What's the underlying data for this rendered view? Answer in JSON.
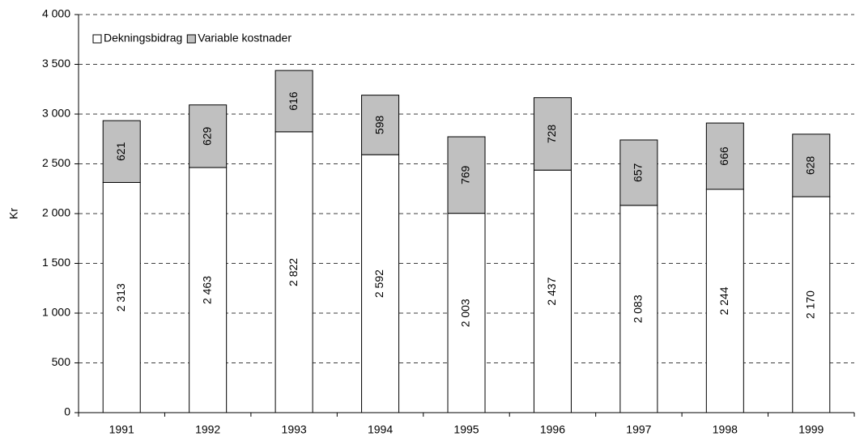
{
  "chart_data": {
    "type": "stacked_bar",
    "y_label": "Kr",
    "categories": [
      "1991",
      "1992",
      "1993",
      "1994",
      "1995",
      "1996",
      "1997",
      "1998",
      "1999"
    ],
    "series": [
      {
        "name": "Dekningsbidrag",
        "color": "#ffffff",
        "values": [
          2313,
          2463,
          2822,
          2592,
          2003,
          2437,
          2083,
          2244,
          2170
        ],
        "value_labels": [
          "2 313",
          "2 463",
          "2 822",
          "2 592",
          "2 003",
          "2 437",
          "2 083",
          "2 244",
          "2 170"
        ]
      },
      {
        "name": "Variable kostnader",
        "color": "#c0c0c0",
        "values": [
          621,
          629,
          616,
          598,
          769,
          728,
          657,
          666,
          628
        ]
      }
    ],
    "ylim": [
      0,
      4000
    ],
    "yticks": [
      0,
      500,
      {
        "value": 1000,
        "label": "1 000"
      },
      {
        "value": 1500,
        "label": "1 500"
      },
      {
        "value": 2000,
        "label": "2 000"
      },
      {
        "value": 2500,
        "label": "2 500"
      },
      {
        "value": 3000,
        "label": "3 000"
      },
      {
        "value": 3500,
        "label": "3 500"
      },
      {
        "value": 4000,
        "label": "4 000"
      }
    ],
    "grid": true,
    "legend": "upper left"
  }
}
